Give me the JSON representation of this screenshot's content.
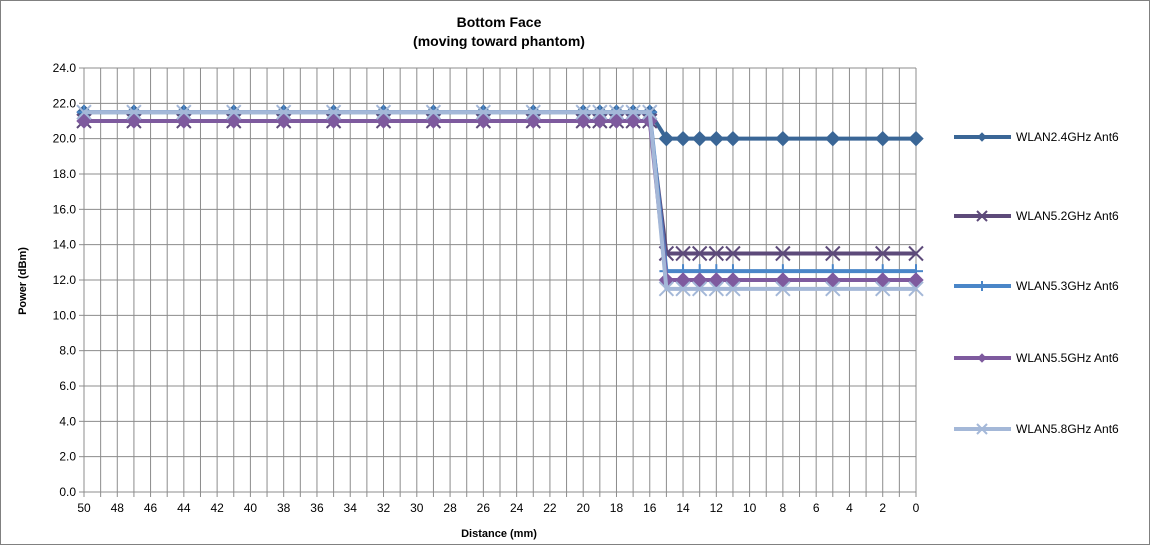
{
  "chart_data": {
    "type": "line",
    "title": "Bottom Face",
    "subtitle": "(moving toward phantom)",
    "xlabel": "Distance (mm)",
    "ylabel": "Power (dBm)",
    "ylim": [
      0,
      24
    ],
    "y_ticks": [
      "0.0",
      "2.0",
      "4.0",
      "6.0",
      "8.0",
      "10.0",
      "12.0",
      "14.0",
      "16.0",
      "18.0",
      "20.0",
      "22.0",
      "24.0"
    ],
    "x_range": [
      50,
      0
    ],
    "x_reversed": true,
    "x_ticks": [
      "50",
      "48",
      "46",
      "44",
      "42",
      "40",
      "38",
      "36",
      "34",
      "32",
      "30",
      "28",
      "26",
      "24",
      "22",
      "20",
      "18",
      "16",
      "14",
      "12",
      "10",
      "8",
      "6",
      "4",
      "2",
      "0"
    ],
    "grid": true,
    "legend_position": "right",
    "x": [
      50,
      47,
      44,
      41,
      38,
      35,
      32,
      29,
      26,
      23,
      20,
      19,
      18,
      17,
      16,
      15,
      14,
      13,
      12,
      11,
      8,
      5,
      2,
      0
    ],
    "series": [
      {
        "name": "WLAN2.4GHz Ant6",
        "color": "#3a6696",
        "marker": "diamond",
        "values": [
          21.5,
          21.5,
          21.5,
          21.5,
          21.5,
          21.5,
          21.5,
          21.5,
          21.5,
          21.5,
          21.5,
          21.5,
          21.5,
          21.5,
          21.5,
          20,
          20,
          20,
          20,
          20,
          20,
          20,
          20,
          20
        ]
      },
      {
        "name": "WLAN5.2GHz Ant6",
        "color": "#5d4a7a",
        "marker": "x",
        "values": [
          21,
          21,
          21,
          21,
          21,
          21,
          21,
          21,
          21,
          21,
          21,
          21,
          21,
          21,
          21,
          13.5,
          13.5,
          13.5,
          13.5,
          13.5,
          13.5,
          13.5,
          13.5,
          13.5
        ]
      },
      {
        "name": "WLAN5.3GHz Ant6",
        "color": "#4a86c8",
        "marker": "plus",
        "values": [
          21.5,
          21.5,
          21.5,
          21.5,
          21.5,
          21.5,
          21.5,
          21.5,
          21.5,
          21.5,
          21.5,
          21.5,
          21.5,
          21.5,
          21.5,
          12.5,
          12.5,
          12.5,
          12.5,
          12.5,
          12.5,
          12.5,
          12.5,
          12.5
        ]
      },
      {
        "name": "WLAN5.5GHz Ant6",
        "color": "#7e5a9e",
        "marker": "diamond",
        "values": [
          21,
          21,
          21,
          21,
          21,
          21,
          21,
          21,
          21,
          21,
          21,
          21,
          21,
          21,
          21,
          12,
          12,
          12,
          12,
          12,
          12,
          12,
          12,
          12
        ]
      },
      {
        "name": "WLAN5.8GHz Ant6",
        "color": "#a4b8d8",
        "marker": "x",
        "values": [
          21.5,
          21.5,
          21.5,
          21.5,
          21.5,
          21.5,
          21.5,
          21.5,
          21.5,
          21.5,
          21.5,
          21.5,
          21.5,
          21.5,
          21.5,
          11.5,
          11.5,
          11.5,
          11.5,
          11.5,
          11.5,
          11.5,
          11.5,
          11.5
        ]
      }
    ]
  }
}
